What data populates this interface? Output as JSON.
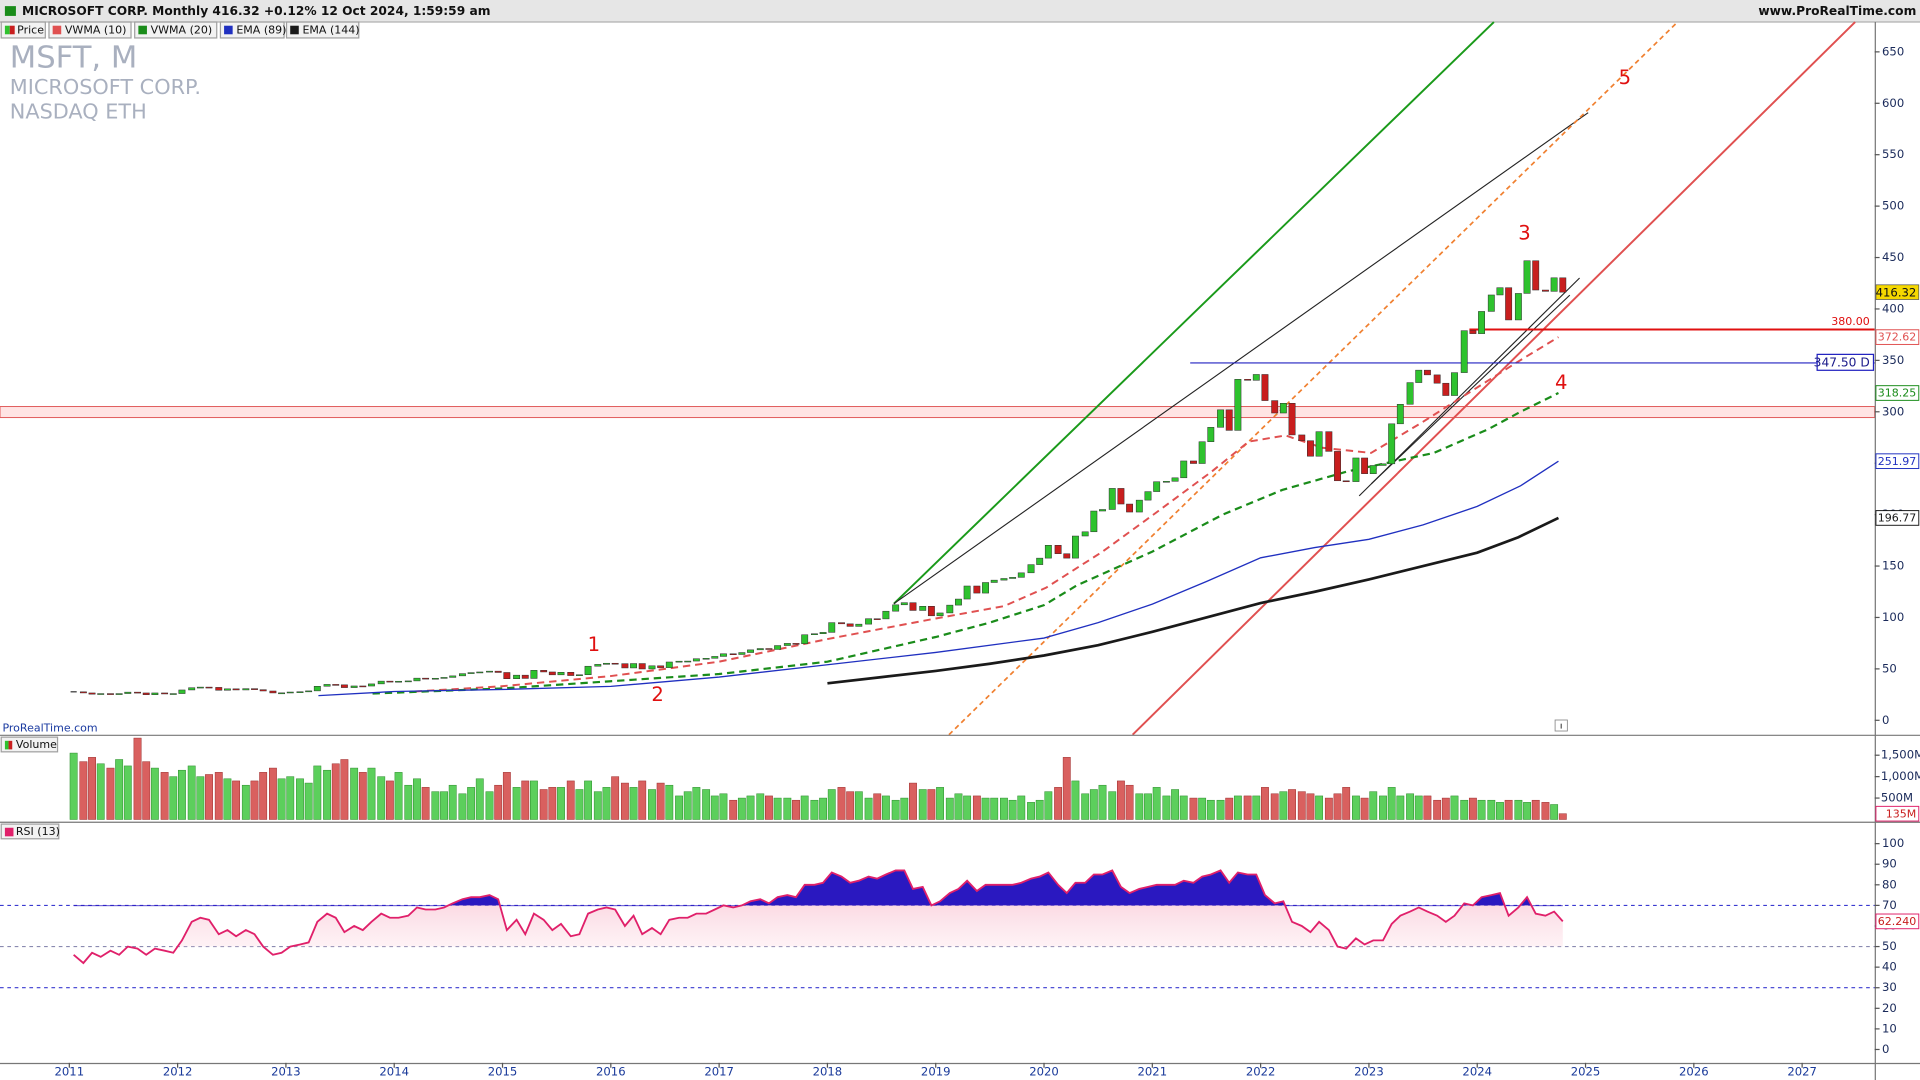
{
  "toolbar": {
    "title": "MICROSOFT CORP. Monthly 416.32 +0.12% 12 Oct 2024, 1:59:59 am",
    "site": "www.ProRealTime.com",
    "price_button": "Price"
  },
  "chart_data": {
    "type": "candlestick",
    "watermark": [
      "MSFT, M",
      "MICROSOFT CORP.",
      "NASDAQ ETH"
    ],
    "source": "ProRealTime.com",
    "xlim": [
      2010.36,
      2027.67
    ],
    "xticks": [
      2011,
      2012,
      2013,
      2014,
      2015,
      2016,
      2017,
      2018,
      2019,
      2020,
      2021,
      2022,
      2023,
      2024,
      2025,
      2026,
      2027
    ],
    "x": [
      2011.04,
      2011.13,
      2011.21,
      2011.29,
      2011.38,
      2011.46,
      2011.54,
      2011.63,
      2011.71,
      2011.79,
      2011.88,
      2011.96,
      2012.04,
      2012.13,
      2012.21,
      2012.29,
      2012.38,
      2012.46,
      2012.54,
      2012.63,
      2012.71,
      2012.79,
      2012.88,
      2012.96,
      2013.04,
      2013.13,
      2013.21,
      2013.29,
      2013.38,
      2013.46,
      2013.54,
      2013.63,
      2013.71,
      2013.79,
      2013.88,
      2013.96,
      2014.04,
      2014.13,
      2014.21,
      2014.29,
      2014.38,
      2014.46,
      2014.54,
      2014.63,
      2014.71,
      2014.79,
      2014.88,
      2014.96,
      2015.04,
      2015.13,
      2015.21,
      2015.29,
      2015.38,
      2015.46,
      2015.54,
      2015.63,
      2015.71,
      2015.79,
      2015.88,
      2015.96,
      2016.04,
      2016.13,
      2016.21,
      2016.29,
      2016.38,
      2016.46,
      2016.54,
      2016.63,
      2016.71,
      2016.79,
      2016.88,
      2016.96,
      2017.04,
      2017.13,
      2017.21,
      2017.29,
      2017.38,
      2017.46,
      2017.54,
      2017.63,
      2017.71,
      2017.79,
      2017.88,
      2017.96,
      2018.04,
      2018.13,
      2018.21,
      2018.29,
      2018.38,
      2018.46,
      2018.54,
      2018.63,
      2018.71,
      2018.79,
      2018.88,
      2018.96,
      2019.04,
      2019.13,
      2019.21,
      2019.29,
      2019.38,
      2019.46,
      2019.54,
      2019.63,
      2019.71,
      2019.79,
      2019.88,
      2019.96,
      2020.04,
      2020.13,
      2020.21,
      2020.29,
      2020.38,
      2020.46,
      2020.54,
      2020.63,
      2020.71,
      2020.79,
      2020.88,
      2020.96,
      2021.04,
      2021.13,
      2021.21,
      2021.29,
      2021.38,
      2021.46,
      2021.54,
      2021.63,
      2021.71,
      2021.79,
      2021.88,
      2021.96,
      2022.04,
      2022.13,
      2022.21,
      2022.29,
      2022.38,
      2022.46,
      2022.54,
      2022.63,
      2022.71,
      2022.79,
      2022.88,
      2022.96,
      2023.04,
      2023.13,
      2023.21,
      2023.29,
      2023.38,
      2023.46,
      2023.54,
      2023.63,
      2023.71,
      2023.79,
      2023.88,
      2023.96,
      2024.04,
      2024.13,
      2024.21,
      2024.29,
      2024.38,
      2024.46,
      2024.54,
      2024.63,
      2024.71,
      2024.79
    ],
    "close": [
      27.7,
      26.6,
      25.4,
      26.0,
      25.0,
      26.0,
      27.4,
      26.6,
      24.9,
      26.6,
      25.6,
      26.0,
      29.5,
      31.7,
      32.3,
      32.0,
      29.2,
      30.6,
      29.5,
      30.8,
      29.8,
      28.5,
      26.6,
      26.7,
      27.5,
      27.8,
      28.6,
      33.1,
      34.9,
      34.5,
      31.8,
      33.4,
      33.3,
      35.4,
      38.1,
      37.4,
      38.0,
      38.3,
      41.0,
      40.4,
      40.9,
      41.7,
      43.2,
      45.4,
      46.4,
      47.0,
      47.8,
      46.5,
      40.4,
      43.9,
      40.7,
      48.6,
      47.0,
      44.2,
      46.7,
      43.5,
      44.3,
      52.6,
      54.4,
      55.5,
      55.1,
      50.9,
      55.2,
      49.9,
      53.0,
      51.2,
      56.7,
      57.5,
      57.6,
      59.9,
      60.3,
      62.1,
      64.7,
      64.0,
      65.9,
      68.5,
      69.8,
      68.9,
      72.7,
      74.8,
      74.5,
      83.2,
      84.2,
      85.5,
      95.0,
      93.8,
      91.3,
      93.5,
      98.8,
      98.6,
      106.1,
      112.3,
      114.4,
      106.8,
      110.9,
      101.6,
      104.4,
      112.0,
      117.9,
      130.6,
      123.7,
      134.0,
      136.3,
      137.9,
      139.0,
      143.4,
      151.4,
      157.7,
      170.2,
      162.0,
      157.7,
      179.2,
      183.3,
      203.5,
      205.0,
      225.5,
      210.3,
      202.5,
      214.1,
      222.4,
      232.0,
      232.4,
      235.8,
      252.2,
      249.7,
      270.9,
      284.9,
      301.9,
      281.9,
      331.6,
      330.6,
      336.3,
      310.9,
      298.8,
      308.3,
      277.5,
      271.9,
      256.8,
      280.7,
      261.5,
      232.9,
      232.1,
      255.1,
      239.8,
      247.8,
      249.4,
      288.3,
      307.3,
      328.4,
      340.5,
      335.9,
      327.8,
      315.8,
      338.1,
      378.9,
      376.0,
      397.6,
      413.6,
      420.7,
      389.3,
      415.1,
      446.9,
      418.4,
      417.1,
      430.3,
      416.32
    ],
    "colors": {
      "up": "#2ec22e",
      "down": "#c81e1e"
    },
    "ylim": [
      -14,
      679
    ],
    "yticks": [
      0,
      50,
      100,
      150,
      200,
      250,
      300,
      350,
      400,
      450,
      500,
      550,
      600,
      650
    ],
    "last_label": "416.32",
    "overlays": [
      {
        "name": "VWMA (10)",
        "color": "#e05050",
        "dash": true,
        "width": 1.6,
        "x": [
          2014.19,
          2014.98,
          2016.0,
          2017.0,
          2018.0,
          2019.0,
          2019.63,
          2020.02,
          2020.54,
          2021.01,
          2021.55,
          2021.89,
          2022.23,
          2022.57,
          2023.02,
          2023.48,
          2023.93,
          2024.38,
          2024.75
        ],
        "values": [
          28,
          33,
          43,
          57,
          79,
          99,
          111,
          129,
          164,
          200,
          242,
          271,
          277,
          265,
          260,
          289,
          319,
          349,
          372.62
        ],
        "label": "372.62"
      },
      {
        "name": "VWMA (20)",
        "color": "#1a8c1a",
        "dash": true,
        "width": 1.8,
        "x": [
          2013.8,
          2015.0,
          2016.0,
          2017.0,
          2018.0,
          2019.0,
          2019.5,
          2020.0,
          2020.3,
          2021.0,
          2021.65,
          2022.2,
          2022.8,
          2023.6,
          2024.1,
          2024.4,
          2024.75
        ],
        "values": [
          26,
          31,
          38,
          45,
          57,
          81,
          95,
          112,
          131,
          164,
          200,
          224,
          242,
          260,
          283,
          300,
          318.25
        ],
        "label": "318.25"
      },
      {
        "name": "EMA (89)",
        "color": "#2030c0",
        "dash": false,
        "width": 1.1,
        "x": [
          2013.3,
          2014.0,
          2015.0,
          2016.0,
          2017.0,
          2018.0,
          2019.0,
          2020.0,
          2020.5,
          2021.0,
          2021.5,
          2022.0,
          2022.5,
          2023.0,
          2023.5,
          2024.0,
          2024.4,
          2024.75
        ],
        "values": [
          24,
          28,
          30,
          33,
          42,
          54,
          66,
          80,
          95,
          113,
          135,
          158,
          168,
          176,
          190,
          208,
          228,
          251.97
        ],
        "label": "251.97"
      },
      {
        "name": "EMA (144)",
        "color": "#1a1a1a",
        "dash": false,
        "width": 2.2,
        "x": [
          2018.0,
          2018.5,
          2019.0,
          2019.5,
          2020.0,
          2020.5,
          2021.0,
          2021.5,
          2022.0,
          2022.5,
          2023.0,
          2023.5,
          2024.0,
          2024.38,
          2024.75
        ],
        "values": [
          36,
          42,
          48,
          55,
          63,
          73,
          86,
          100,
          114,
          125,
          137,
          150,
          163,
          178,
          196.77
        ],
        "label": "196.77"
      }
    ],
    "hlines": [
      {
        "value": 380,
        "label": "380.00",
        "color": "#e01010"
      },
      {
        "value": 347.5,
        "label": "347.50 D",
        "color": "#2020c0"
      }
    ],
    "waves": [
      "1",
      "2",
      "3",
      "4",
      "5"
    ],
    "volume": {
      "title": "Volume",
      "ylim": [
        -50000000.0,
        1950000000.0
      ],
      "yticks": [
        {
          "value": 500000000.0,
          "label": "500M"
        },
        {
          "value": 1000000000.0,
          "label": "1,000M"
        },
        {
          "value": 1500000000.0,
          "label": "1,500M"
        }
      ],
      "last_label": "135M",
      "values": [
        1550000000.0,
        1350000000.0,
        1450000000.0,
        1300000000.0,
        1200000000.0,
        1400000000.0,
        1250000000.0,
        1900000000.0,
        1350000000.0,
        1200000000.0,
        1100000000.0,
        1000000000.0,
        1150000000.0,
        1250000000.0,
        1000000000.0,
        1050000000.0,
        1100000000.0,
        950000000.0,
        900000000.0,
        800000000.0,
        900000000.0,
        1100000000.0,
        1200000000.0,
        950000000.0,
        1000000000.0,
        950000000.0,
        850000000.0,
        1250000000.0,
        1150000000.0,
        1300000000.0,
        1400000000.0,
        1200000000.0,
        1100000000.0,
        1200000000.0,
        1000000000.0,
        900000000.0,
        1100000000.0,
        800000000.0,
        950000000.0,
        750000000.0,
        650000000.0,
        650000000.0,
        800000000.0,
        600000000.0,
        750000000.0,
        950000000.0,
        650000000.0,
        800000000.0,
        1100000000.0,
        750000000.0,
        900000000.0,
        900000000.0,
        700000000.0,
        750000000.0,
        750000000.0,
        900000000.0,
        700000000.0,
        900000000.0,
        650000000.0,
        750000000.0,
        1000000000.0,
        850000000.0,
        750000000.0,
        900000000.0,
        700000000.0,
        850000000.0,
        800000000.0,
        550000000.0,
        650000000.0,
        750000000.0,
        700000000.0,
        550000000.0,
        600000000.0,
        450000000.0,
        500000000.0,
        550000000.0,
        600000000.0,
        550000000.0,
        500000000.0,
        500000000.0,
        450000000.0,
        550000000.0,
        450000000.0,
        500000000.0,
        700000000.0,
        750000000.0,
        650000000.0,
        650000000.0,
        500000000.0,
        600000000.0,
        550000000.0,
        450000000.0,
        500000000.0,
        850000000.0,
        700000000.0,
        700000000.0,
        750000000.0,
        500000000.0,
        600000000.0,
        550000000.0,
        550000000.0,
        500000000.0,
        500000000.0,
        500000000.0,
        450000000.0,
        550000000.0,
        400000000.0,
        450000000.0,
        650000000.0,
        750000000.0,
        1450000000.0,
        900000000.0,
        600000000.0,
        700000000.0,
        800000000.0,
        650000000.0,
        900000000.0,
        800000000.0,
        600000000.0,
        600000000.0,
        750000000.0,
        550000000.0,
        700000000.0,
        550000000.0,
        500000000.0,
        500000000.0,
        450000000.0,
        450000000.0,
        500000000.0,
        550000000.0,
        550000000.0,
        550000000.0,
        750000000.0,
        600000000.0,
        650000000.0,
        700000000.0,
        650000000.0,
        600000000.0,
        550000000.0,
        500000000.0,
        600000000.0,
        750000000.0,
        550000000.0,
        500000000.0,
        650000000.0,
        550000000.0,
        750000000.0,
        550000000.0,
        600000000.0,
        550000000.0,
        550000000.0,
        450000000.0,
        500000000.0,
        550000000.0,
        450000000.0,
        500000000.0,
        450000000.0,
        450000000.0,
        400000000.0,
        450000000.0,
        450000000.0,
        400000000.0,
        450000000.0,
        400000000.0,
        350000000.0,
        135000000.0
      ]
    },
    "rsi": {
      "title": "RSI (13)",
      "color": "#e0206a",
      "ylim": [
        -6.5,
        110.1
      ],
      "yticks": [
        0,
        10,
        20,
        30,
        40,
        50,
        60,
        70,
        80,
        90,
        100
      ],
      "levels": [
        30,
        50,
        70
      ],
      "last_label": "62.240",
      "values": [
        46,
        42,
        47,
        45,
        48,
        46,
        50,
        49,
        46,
        49,
        48,
        47,
        53,
        62,
        64,
        63,
        56,
        58,
        55,
        58,
        56,
        50,
        46,
        47,
        50,
        51,
        52,
        62,
        66,
        64,
        57,
        60,
        58,
        62,
        66,
        64,
        64,
        65,
        69,
        68,
        68,
        69,
        71,
        73,
        74,
        74,
        75,
        73,
        58,
        63,
        56,
        66,
        63,
        58,
        61,
        55,
        56,
        66,
        68,
        69,
        68,
        60,
        65,
        56,
        59,
        56,
        63,
        64,
        64,
        66,
        66,
        68,
        70,
        69,
        70,
        72,
        73,
        71,
        74,
        75,
        74,
        80,
        80,
        81,
        86,
        84,
        81,
        82,
        84,
        83,
        85,
        87,
        87,
        78,
        79,
        70,
        72,
        76,
        78,
        82,
        77,
        80,
        80,
        80,
        80,
        81,
        83,
        84,
        86,
        80,
        76,
        81,
        81,
        85,
        85,
        87,
        79,
        76,
        78,
        79,
        80,
        80,
        80,
        82,
        81,
        84,
        85,
        87,
        81,
        86,
        85,
        85,
        75,
        71,
        72,
        62,
        60,
        57,
        62,
        58,
        50,
        49,
        54,
        51,
        53,
        53,
        61,
        65,
        67,
        69,
        67,
        65,
        62,
        65,
        71,
        70,
        74,
        75,
        76,
        65,
        69,
        74,
        66,
        65,
        67,
        62.24
      ]
    }
  }
}
